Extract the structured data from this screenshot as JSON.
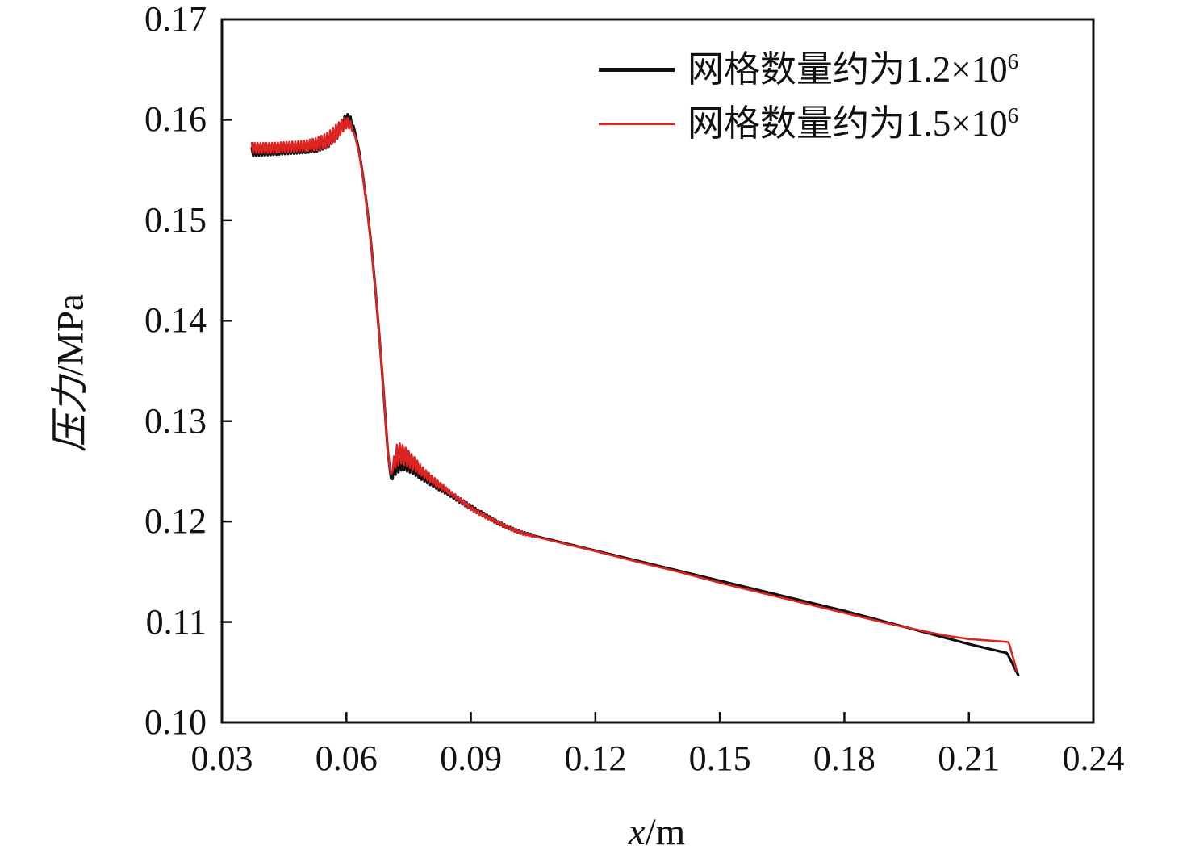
{
  "figure": {
    "y_axis_title": {
      "main": "压力",
      "unit": "/MPa"
    },
    "x_axis_title": {
      "main": "x",
      "unit": "/m"
    },
    "legend": [
      {
        "label": "网格数量约为1.2×10",
        "sup": "6"
      },
      {
        "label": "网格数量约为1.5×10",
        "sup": "6"
      }
    ]
  },
  "chart_data": {
    "type": "line",
    "title": "",
    "xlabel": "x/m",
    "ylabel": "压力/MPa",
    "xlim": [
      0.03,
      0.24
    ],
    "ylim": [
      0.1,
      0.17
    ],
    "grid": false,
    "legend_position": "upper right",
    "frame": true,
    "axis_color": "#111111",
    "x_ticks": [
      0.03,
      0.06,
      0.09,
      0.12,
      0.15,
      0.18,
      0.21,
      0.24
    ],
    "x_tick_labels": [
      "0.03",
      "0.06",
      "0.09",
      "0.12",
      "0.15",
      "0.18",
      "0.21",
      "0.24"
    ],
    "y_ticks": [
      0.1,
      0.11,
      0.12,
      0.13,
      0.14,
      0.15,
      0.16,
      0.17
    ],
    "y_tick_labels": [
      "0.10",
      "0.11",
      "0.12",
      "0.13",
      "0.14",
      "0.15",
      "0.16",
      "0.17"
    ],
    "series": [
      {
        "name": "网格数量约为1.2×10⁶",
        "color": "#111111",
        "stroke_width": 3.2,
        "points": [
          [
            0.0372,
            0.1568
          ],
          [
            0.042,
            0.1569
          ],
          [
            0.046,
            0.157
          ],
          [
            0.05,
            0.1571
          ],
          [
            0.053,
            0.1573
          ],
          [
            0.0555,
            0.1577
          ],
          [
            0.0575,
            0.1585
          ],
          [
            0.059,
            0.1596
          ],
          [
            0.06,
            0.1602
          ],
          [
            0.061,
            0.16
          ],
          [
            0.062,
            0.1589
          ],
          [
            0.063,
            0.157
          ],
          [
            0.064,
            0.1544
          ],
          [
            0.065,
            0.1512
          ],
          [
            0.066,
            0.1475
          ],
          [
            0.067,
            0.1431
          ],
          [
            0.068,
            0.1382
          ],
          [
            0.069,
            0.1327
          ],
          [
            0.07,
            0.1268
          ],
          [
            0.0708,
            0.1242
          ],
          [
            0.0713,
            0.125
          ],
          [
            0.072,
            0.1259
          ],
          [
            0.0728,
            0.1263
          ],
          [
            0.074,
            0.1262
          ],
          [
            0.076,
            0.1256
          ],
          [
            0.078,
            0.1248
          ],
          [
            0.08,
            0.1242
          ],
          [
            0.082,
            0.1236
          ],
          [
            0.0845,
            0.1229
          ],
          [
            0.087,
            0.1222
          ],
          [
            0.09,
            0.1214
          ],
          [
            0.093,
            0.1207
          ],
          [
            0.096,
            0.12
          ],
          [
            0.099,
            0.1194
          ],
          [
            0.102,
            0.1189
          ],
          [
            0.105,
            0.1186
          ],
          [
            0.108,
            0.1183
          ],
          [
            0.112,
            0.1179
          ],
          [
            0.116,
            0.1175
          ],
          [
            0.12,
            0.1171
          ],
          [
            0.13,
            0.1161
          ],
          [
            0.14,
            0.1151
          ],
          [
            0.15,
            0.1141
          ],
          [
            0.16,
            0.1131
          ],
          [
            0.17,
            0.1121
          ],
          [
            0.18,
            0.1111
          ],
          [
            0.19,
            0.11
          ],
          [
            0.2,
            0.1089
          ],
          [
            0.21,
            0.1078
          ],
          [
            0.2192,
            0.1069
          ],
          [
            0.2219,
            0.1047
          ]
        ],
        "noise_bands": [
          [
            0.0372,
            0.05,
            0.0004,
            0.0004
          ],
          [
            0.05,
            0.0575,
            0.0004,
            0.0005
          ],
          [
            0.0575,
            0.0605,
            0.0005,
            0.0004
          ],
          [
            0.0605,
            0.062,
            0.0004,
            0.0001
          ],
          [
            0.071,
            0.0722,
            0.0004,
            0.0013
          ],
          [
            0.0722,
            0.078,
            0.0013,
            0.0006
          ],
          [
            0.078,
            0.085,
            0.0006,
            0.00025
          ],
          [
            0.085,
            0.105,
            0.00025,
            0.0001
          ]
        ]
      },
      {
        "name": "网格数量约为1.5×10⁶",
        "color": "#dd2423",
        "stroke_width": 2.6,
        "points": [
          [
            0.0372,
            0.1572
          ],
          [
            0.042,
            0.1572
          ],
          [
            0.046,
            0.1573
          ],
          [
            0.05,
            0.1574
          ],
          [
            0.053,
            0.1576
          ],
          [
            0.0555,
            0.158
          ],
          [
            0.0575,
            0.1587
          ],
          [
            0.059,
            0.1594
          ],
          [
            0.06,
            0.1597
          ],
          [
            0.061,
            0.1595
          ],
          [
            0.062,
            0.1585
          ],
          [
            0.063,
            0.1568
          ],
          [
            0.064,
            0.1543
          ],
          [
            0.065,
            0.1511
          ],
          [
            0.066,
            0.1474
          ],
          [
            0.067,
            0.1431
          ],
          [
            0.068,
            0.1382
          ],
          [
            0.069,
            0.1327
          ],
          [
            0.07,
            0.1268
          ],
          [
            0.0707,
            0.1246
          ],
          [
            0.0713,
            0.1257
          ],
          [
            0.0722,
            0.1266
          ],
          [
            0.0731,
            0.1268
          ],
          [
            0.0745,
            0.1264
          ],
          [
            0.0765,
            0.1257
          ],
          [
            0.0785,
            0.1249
          ],
          [
            0.0805,
            0.1242
          ],
          [
            0.0825,
            0.1236
          ],
          [
            0.085,
            0.1229
          ],
          [
            0.0875,
            0.1221
          ],
          [
            0.0905,
            0.1212
          ],
          [
            0.0935,
            0.1205
          ],
          [
            0.0965,
            0.1199
          ],
          [
            0.0995,
            0.1193
          ],
          [
            0.1025,
            0.1188
          ],
          [
            0.1055,
            0.1185
          ],
          [
            0.1085,
            0.1182
          ],
          [
            0.1125,
            0.1178
          ],
          [
            0.1165,
            0.1174
          ],
          [
            0.1205,
            0.117
          ],
          [
            0.13,
            0.116
          ],
          [
            0.14,
            0.115
          ],
          [
            0.15,
            0.1139
          ],
          [
            0.16,
            0.1129
          ],
          [
            0.17,
            0.1119
          ],
          [
            0.18,
            0.1109
          ],
          [
            0.19,
            0.1099
          ],
          [
            0.2,
            0.109
          ],
          [
            0.205,
            0.1086
          ],
          [
            0.21,
            0.1083
          ],
          [
            0.2196,
            0.108
          ],
          [
            0.2215,
            0.1052
          ]
        ],
        "noise_bands": [
          [
            0.0372,
            0.05,
            0.0005,
            0.0005
          ],
          [
            0.05,
            0.0575,
            0.0005,
            0.0008
          ],
          [
            0.0575,
            0.0605,
            0.0008,
            0.0005
          ],
          [
            0.0605,
            0.0615,
            0.0005,
            0.0002
          ],
          [
            0.071,
            0.0722,
            0.0003,
            0.0011
          ],
          [
            0.0722,
            0.078,
            0.0011,
            0.0005
          ],
          [
            0.078,
            0.085,
            0.0005,
            0.0002
          ],
          [
            0.085,
            0.105,
            0.0002,
            0.0001
          ]
        ]
      }
    ]
  }
}
